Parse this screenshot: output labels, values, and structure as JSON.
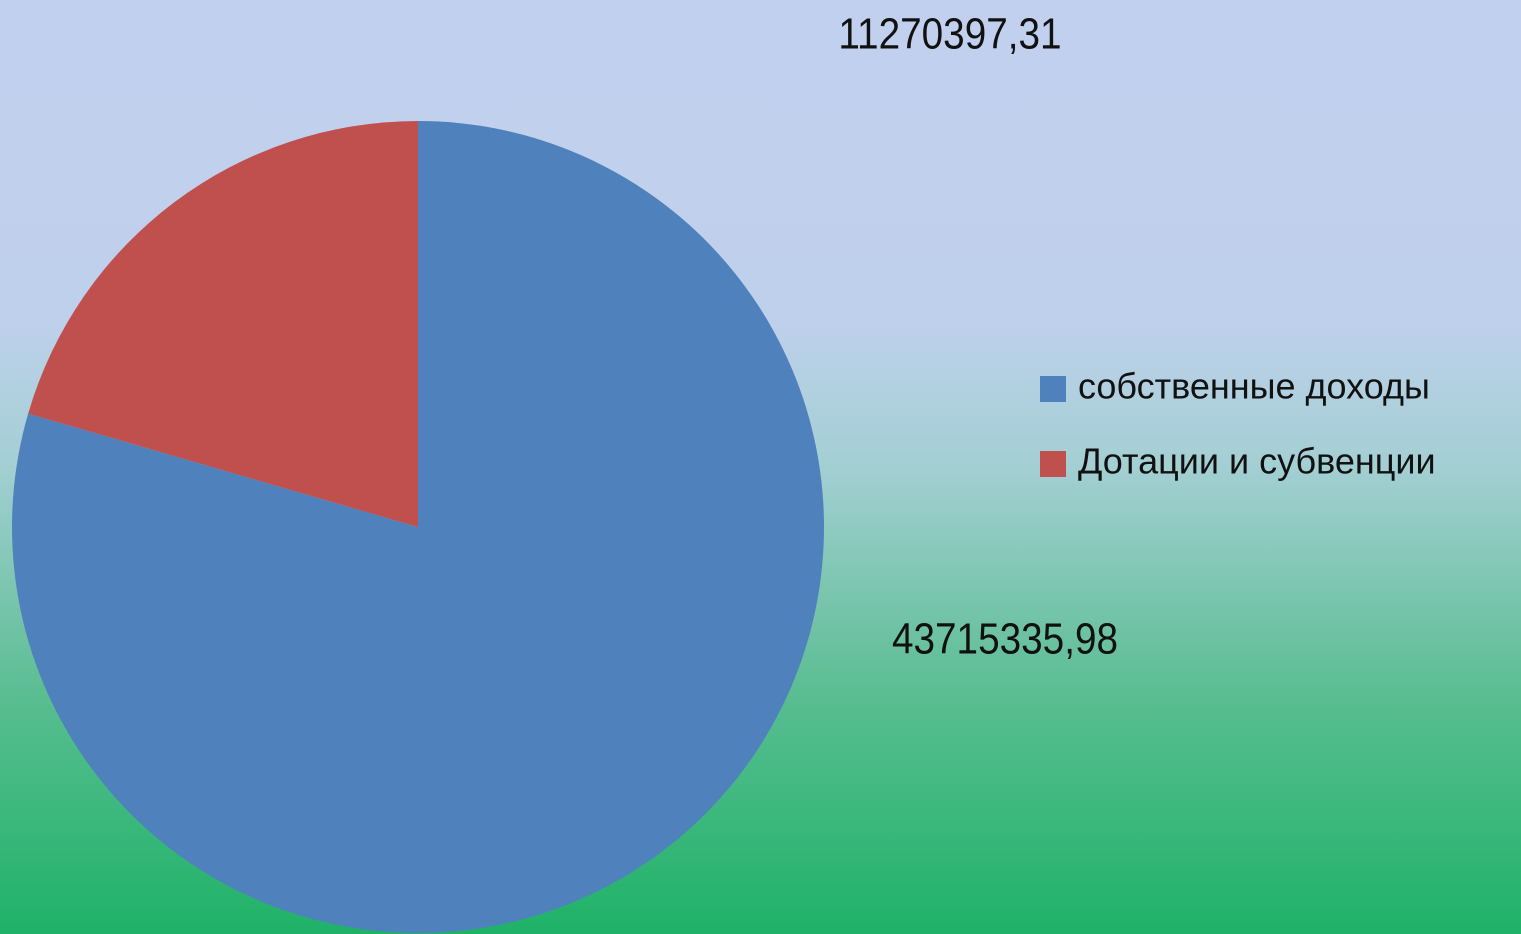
{
  "chart_data": {
    "type": "pie",
    "categories": [
      "собственные доходы",
      "Дотации и субвенции"
    ],
    "values": [
      43715335.98,
      11270397.31
    ],
    "value_labels": [
      "43715335,98",
      "11270397,31"
    ],
    "colors": [
      "#4f81bd",
      "#c0504d"
    ],
    "legend": "right"
  }
}
